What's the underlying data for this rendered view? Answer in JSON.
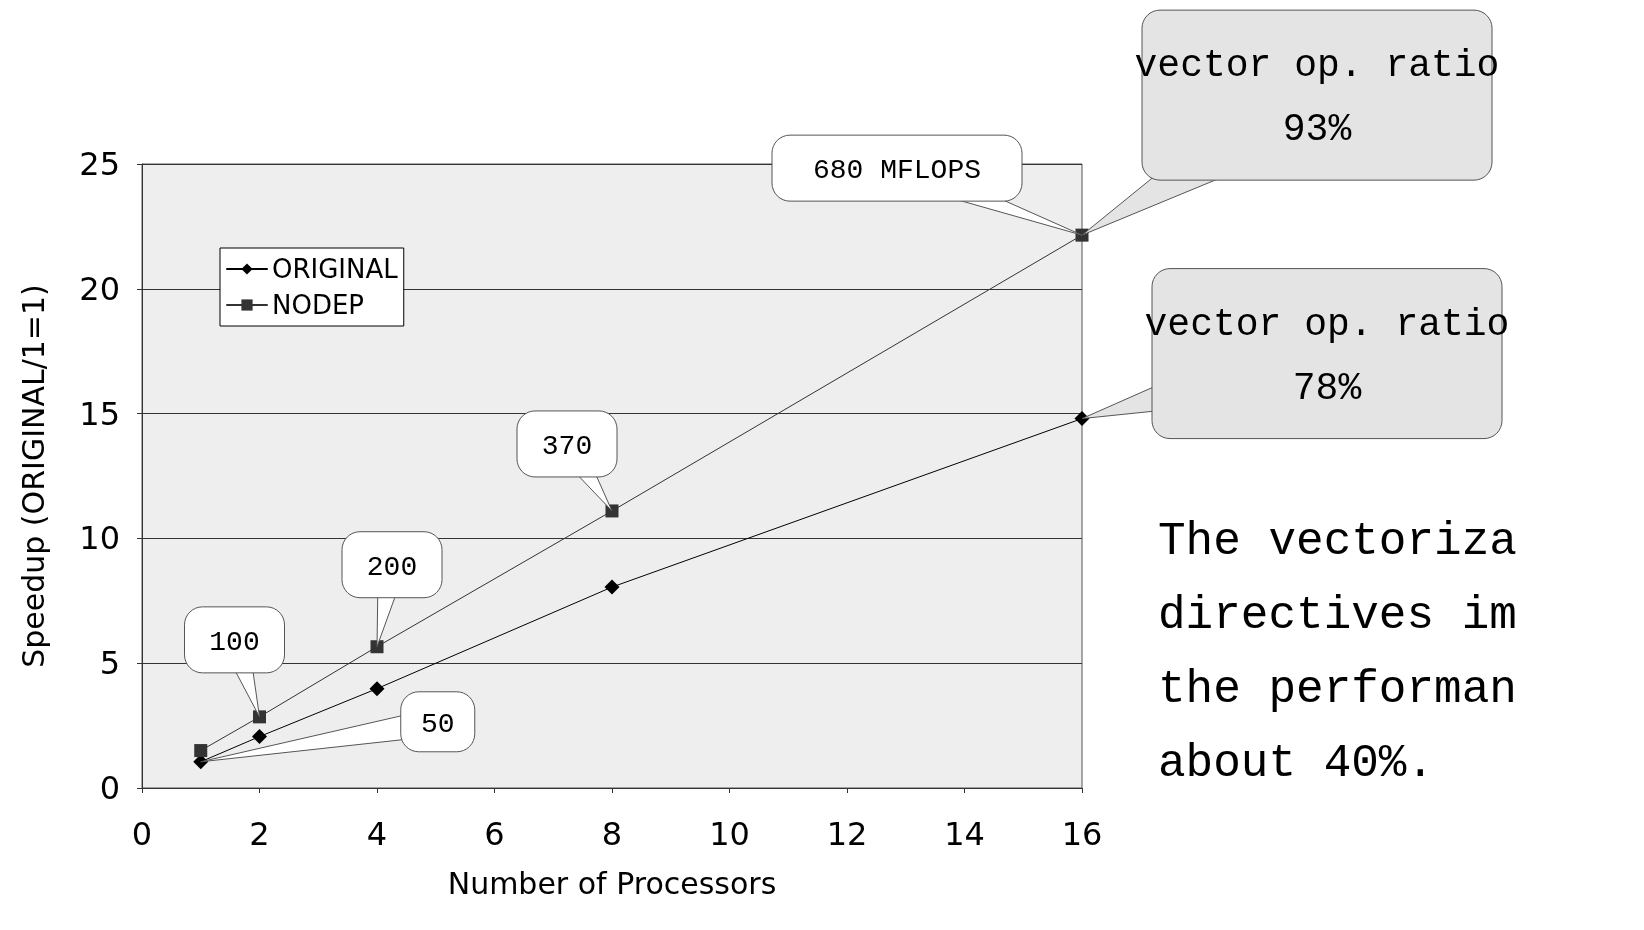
{
  "chart_data": {
    "type": "line",
    "xlabel": "Number of Processors",
    "ylabel": "Speedup (ORIGINAL/1=1)",
    "x": [
      1,
      2,
      4,
      8,
      16
    ],
    "series": [
      {
        "name": "ORIGINAL",
        "color": "#000000",
        "marker": "diamond",
        "values": [
          1.05,
          2.06,
          3.98,
          8.05,
          14.8
        ]
      },
      {
        "name": "NODEP",
        "color": "#333333",
        "marker": "square",
        "values": [
          1.5,
          2.85,
          5.66,
          11.1,
          22.15
        ]
      }
    ],
    "xlim": [
      0,
      16
    ],
    "xticks": [
      0,
      2,
      4,
      6,
      8,
      10,
      12,
      14,
      16
    ],
    "ylim": [
      0,
      25
    ],
    "yticks": [
      0,
      5,
      10,
      15,
      20,
      25
    ],
    "grid": "y",
    "legend": "top left",
    "line_style": "solid",
    "annotations": [
      {
        "text": "50",
        "x": 1,
        "y": 1.05
      },
      {
        "text": "100",
        "x": 2,
        "y": 2.85
      },
      {
        "text": "200",
        "x": 4,
        "y": 5.66
      },
      {
        "text": "370",
        "x": 8,
        "y": 11.1
      },
      {
        "text": "680 MFLOPS",
        "x": 16,
        "y": 22.15
      },
      {
        "text": "vector op. ratio\n93%",
        "x": 16,
        "y": 22.15
      },
      {
        "text": "vector op. ratio\n78%",
        "x": 16,
        "y": 14.8
      },
      "The vectoriza\ndirectives im\nthe performan\nabout 40%."
    ]
  }
}
